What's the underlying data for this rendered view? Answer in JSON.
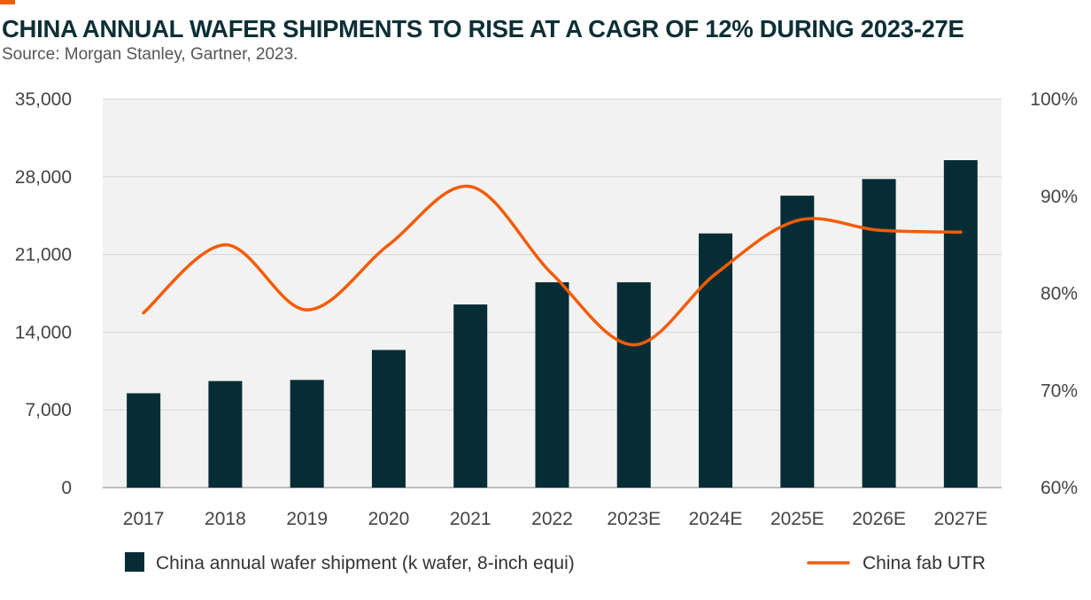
{
  "header": {
    "title": "CHINA ANNUAL WAFER SHIPMENTS TO RISE AT A CAGR OF 12% DURING 2023-27E",
    "source": "Source: Morgan Stanley, Gartner, 2023."
  },
  "colors": {
    "accent": "#f25c05",
    "bar": "#062d36",
    "line": "#f25c05",
    "plot_background": "#f2f2f2",
    "title": "#0d2f36"
  },
  "chart_data": {
    "type": "bar",
    "categories": [
      "2017",
      "2018",
      "2019",
      "2020",
      "2021",
      "2022",
      "2023E",
      "2024E",
      "2025E",
      "2026E",
      "2027E"
    ],
    "series": [
      {
        "name": "China annual wafer shipment (k wafer, 8-inch equi)",
        "type": "bar",
        "axis": "left",
        "values": [
          8500,
          9600,
          9700,
          12400,
          16500,
          18500,
          18500,
          22900,
          26300,
          27800,
          29500
        ]
      },
      {
        "name": "China fab UTR",
        "type": "line",
        "axis": "right",
        "values": [
          78,
          85,
          78.3,
          85,
          91,
          82,
          74.7,
          82,
          87.5,
          86.5,
          86.3
        ]
      }
    ],
    "y_left": {
      "ylim": [
        0,
        35000
      ],
      "ticks": [
        0,
        7000,
        14000,
        21000,
        28000,
        35000
      ],
      "tick_labels": [
        "0",
        "7,000",
        "14,000",
        "21,000",
        "28,000",
        "35,000"
      ]
    },
    "y_right": {
      "ylim": [
        60,
        100
      ],
      "ticks": [
        60,
        70,
        80,
        90,
        100
      ],
      "tick_labels": [
        "60%",
        "70%",
        "80%",
        "90%",
        "100%"
      ]
    },
    "grid": true,
    "legend_position": "bottom",
    "title": "CHINA ANNUAL WAFER SHIPMENTS TO RISE AT A CAGR OF 12% DURING 2023-27E",
    "xlabel": "",
    "ylabel": ""
  }
}
